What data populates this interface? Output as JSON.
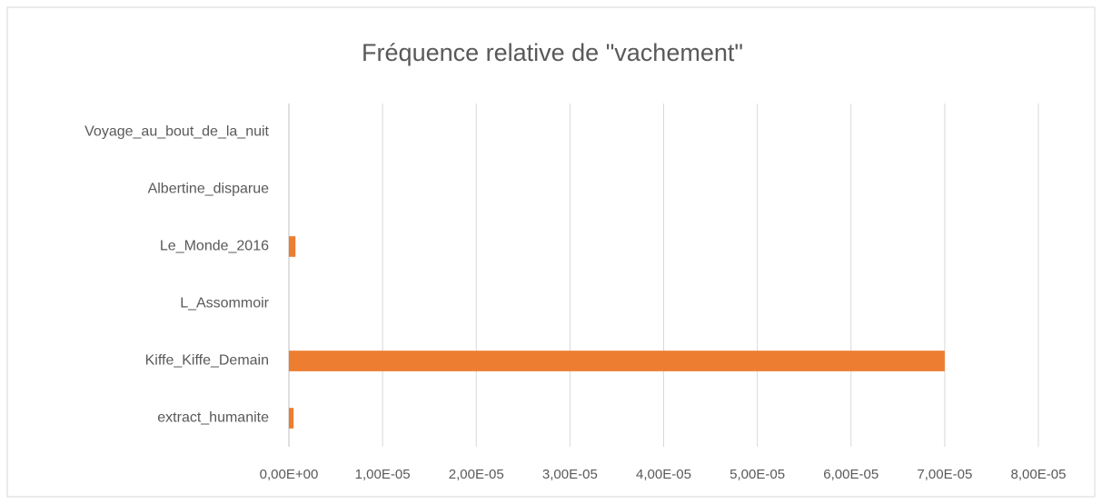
{
  "chart_data": {
    "type": "bar",
    "orientation": "horizontal",
    "title": "Fréquence  relative de \"vachement\"",
    "categories": [
      "Voyage_au_bout_de_la_nuit",
      "Albertine_disparue",
      "Le_Monde_2016",
      "L_Assommoir",
      "Kiffe_Kiffe_Demain",
      "extract_humanite"
    ],
    "values": [
      0,
      0,
      7e-07,
      0,
      7e-05,
      5e-07
    ],
    "color": "#ed7d31",
    "xlim": [
      0,
      8e-05
    ],
    "xticks": [
      {
        "value": 0,
        "label": "0,00E+00"
      },
      {
        "value": 1e-05,
        "label": "1,00E-05"
      },
      {
        "value": 2e-05,
        "label": "2,00E-05"
      },
      {
        "value": 3e-05,
        "label": "3,00E-05"
      },
      {
        "value": 4e-05,
        "label": "4,00E-05"
      },
      {
        "value": 5e-05,
        "label": "5,00E-05"
      },
      {
        "value": 6e-05,
        "label": "6,00E-05"
      },
      {
        "value": 7e-05,
        "label": "7,00E-05"
      },
      {
        "value": 8e-05,
        "label": "8,00E-05"
      }
    ],
    "grid": true
  }
}
